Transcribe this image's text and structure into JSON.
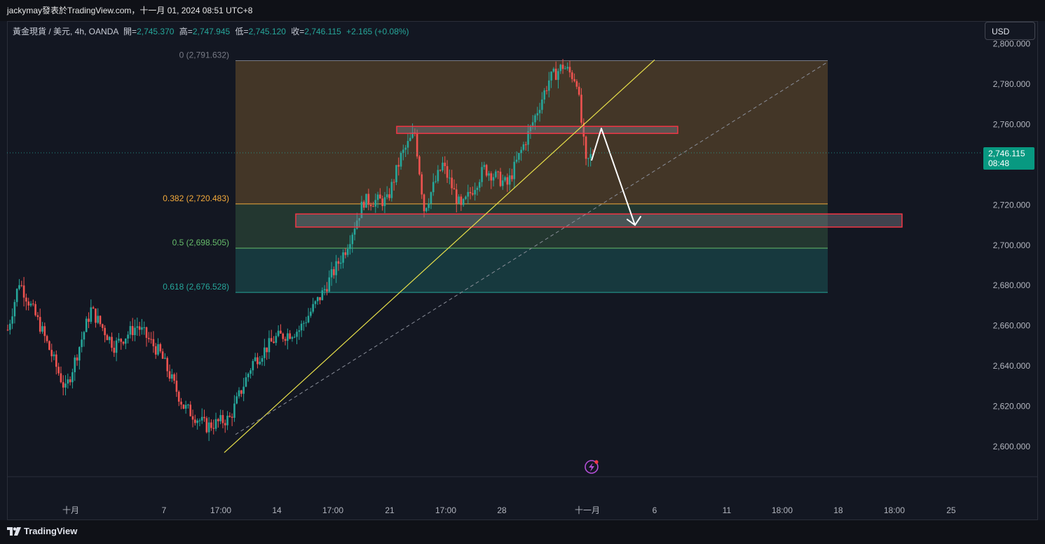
{
  "caption": "jackymay發表於TradingView.com，十一月 01, 2024 08:51 UTC+8",
  "legend": {
    "symbol": "黃金現貨 / 美元, 4h, OANDA",
    "open_label": "開=",
    "open": "2,745.370",
    "high_label": "高=",
    "high": "2,747.945",
    "low_label": "低=",
    "low": "2,745.120",
    "close_label": "收=",
    "close": "2,746.115",
    "change": "+2.165 (+0.08%)"
  },
  "currency_button": "USD",
  "brand": "TradingView",
  "last_price": {
    "value": "2,746.115",
    "countdown": "08:48"
  },
  "chart_data": {
    "type": "candlestick",
    "symbol": "XAUUSD",
    "timeframe": "4h",
    "ylim": [
      2590,
      2800
    ],
    "y_ticks": [
      2600,
      2620,
      2640,
      2660,
      2680,
      2700,
      2720,
      2740,
      2760,
      2780,
      2800
    ],
    "y_tick_labels": [
      "2,600.000",
      "2,620.000",
      "2,640.000",
      "2,660.000",
      "2,680.000",
      "2,700.000",
      "2,720.000",
      "2,740.000",
      "2,760.000",
      "2,780.000",
      "2,800.000"
    ],
    "x_tick_labels": [
      "十月",
      "7",
      "17:00",
      "14",
      "17:00",
      "21",
      "17:00",
      "28",
      "十一月",
      "6",
      "11",
      "18:00",
      "18",
      "18:00",
      "25"
    ],
    "fibonacci": [
      {
        "level": "0",
        "price": 2791.632,
        "label": "0 (2,791.632)",
        "color": "#787b86"
      },
      {
        "level": "0.382",
        "price": 2720.483,
        "label": "0.382 (2,720.483)",
        "color": "#f2a93b"
      },
      {
        "level": "0.5",
        "price": 2698.505,
        "label": "0.5 (2,698.505)",
        "color": "#66bb6a"
      },
      {
        "level": "0.618",
        "price": 2676.528,
        "label": "0.618 (2,676.528)",
        "color": "#26a69a"
      }
    ],
    "zones": [
      {
        "price_top": 2759,
        "price_bottom": 2755.5
      },
      {
        "price_top": 2715.5,
        "price_bottom": 2709
      }
    ],
    "trendline_solid": {
      "from": 2597,
      "to": 2792
    },
    "trendline_dashed": {
      "from": 2606,
      "to": 2791
    },
    "projection": [
      2758,
      2710
    ],
    "anchors": [
      {
        "i": 0,
        "p": 2658
      },
      {
        "i": 5,
        "p": 2682
      },
      {
        "i": 14,
        "p": 2660
      },
      {
        "i": 25,
        "p": 2628
      },
      {
        "i": 36,
        "p": 2668
      },
      {
        "i": 46,
        "p": 2650
      },
      {
        "i": 56,
        "p": 2660
      },
      {
        "i": 66,
        "p": 2646
      },
      {
        "i": 76,
        "p": 2620
      },
      {
        "i": 86,
        "p": 2610
      },
      {
        "i": 96,
        "p": 2614
      },
      {
        "i": 106,
        "p": 2642
      },
      {
        "i": 116,
        "p": 2654
      },
      {
        "i": 126,
        "p": 2658
      },
      {
        "i": 136,
        "p": 2676
      },
      {
        "i": 146,
        "p": 2698
      },
      {
        "i": 154,
        "p": 2722
      },
      {
        "i": 164,
        "p": 2722
      },
      {
        "i": 170,
        "p": 2744
      },
      {
        "i": 176,
        "p": 2756
      },
      {
        "i": 180,
        "p": 2718
      },
      {
        "i": 188,
        "p": 2740
      },
      {
        "i": 196,
        "p": 2718
      },
      {
        "i": 206,
        "p": 2738
      },
      {
        "i": 216,
        "p": 2730
      },
      {
        "i": 226,
        "p": 2758
      },
      {
        "i": 234,
        "p": 2782
      },
      {
        "i": 240,
        "p": 2789
      },
      {
        "i": 246,
        "p": 2782
      },
      {
        "i": 250,
        "p": 2740
      },
      {
        "i": 253,
        "p": 2746
      }
    ]
  }
}
